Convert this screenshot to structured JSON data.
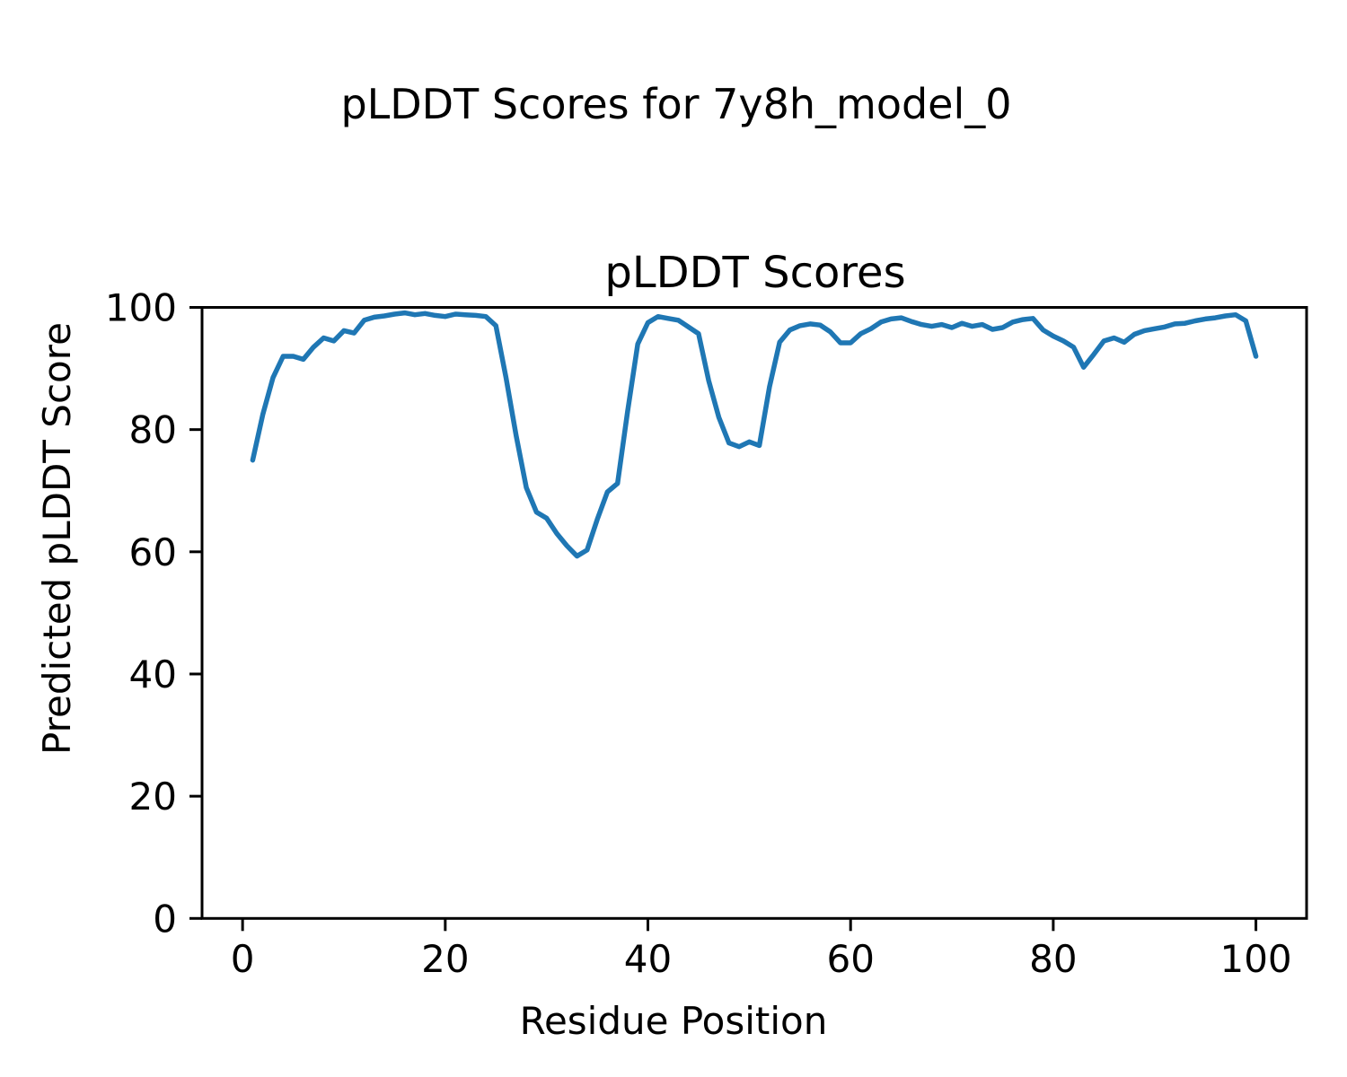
{
  "figure": {
    "background": "#ffffff",
    "suptitle": "pLDDT Scores for 7y8h_model_0"
  },
  "chart_data": {
    "type": "line",
    "title": "pLDDT Scores",
    "xlabel": "Residue Position",
    "ylabel": "Predicted pLDDT Score",
    "x_ticks": [
      0,
      20,
      40,
      60,
      80,
      100
    ],
    "y_ticks": [
      0,
      20,
      40,
      60,
      80,
      100
    ],
    "xlim": [
      -4,
      105
    ],
    "ylim": [
      0,
      100
    ],
    "grid": false,
    "legend": "none",
    "line_color": "#1f77b4",
    "axis_color": "#000000",
    "line_width": 5.5,
    "series": [
      {
        "name": "pLDDT",
        "x": [
          1,
          2,
          3,
          4,
          5,
          6,
          7,
          8,
          9,
          10,
          11,
          12,
          13,
          14,
          15,
          16,
          17,
          18,
          19,
          20,
          21,
          22,
          23,
          24,
          25,
          26,
          27,
          28,
          29,
          30,
          31,
          32,
          33,
          34,
          35,
          36,
          37,
          38,
          39,
          40,
          41,
          42,
          43,
          44,
          45,
          46,
          47,
          48,
          49,
          50,
          51,
          52,
          53,
          54,
          55,
          56,
          57,
          58,
          59,
          60,
          61,
          62,
          63,
          64,
          65,
          66,
          67,
          68,
          69,
          70,
          71,
          72,
          73,
          74,
          75,
          76,
          77,
          78,
          79,
          80,
          81,
          82,
          83,
          84,
          85,
          86,
          87,
          88,
          89,
          90,
          91,
          92,
          93,
          94,
          95,
          96,
          97,
          98,
          99,
          100
        ],
        "values": [
          75.0,
          82.5,
          88.5,
          92.0,
          92.0,
          91.5,
          93.5,
          95.0,
          94.5,
          96.2,
          95.8,
          97.9,
          98.4,
          98.6,
          98.9,
          99.1,
          98.8,
          99.0,
          98.7,
          98.5,
          98.9,
          98.8,
          98.7,
          98.5,
          97.0,
          88.5,
          79.0,
          70.5,
          66.5,
          65.5,
          63.0,
          61.0,
          59.3,
          60.3,
          65.3,
          69.8,
          71.2,
          83.0,
          94.0,
          97.5,
          98.5,
          98.2,
          97.9,
          96.8,
          95.7,
          88.0,
          82.0,
          77.8,
          77.2,
          78.0,
          77.4,
          87.0,
          94.3,
          96.3,
          97.0,
          97.3,
          97.1,
          96.0,
          94.2,
          94.2,
          95.7,
          96.5,
          97.6,
          98.1,
          98.3,
          97.7,
          97.2,
          96.9,
          97.2,
          96.7,
          97.4,
          96.9,
          97.2,
          96.4,
          96.7,
          97.6,
          98.0,
          98.2,
          96.3,
          95.3,
          94.5,
          93.5,
          90.2,
          92.3,
          94.5,
          95.0,
          94.3,
          95.6,
          96.2,
          96.5,
          96.8,
          97.3,
          97.4,
          97.8,
          98.1,
          98.3,
          98.6,
          98.8,
          97.8,
          92.0
        ]
      }
    ]
  }
}
